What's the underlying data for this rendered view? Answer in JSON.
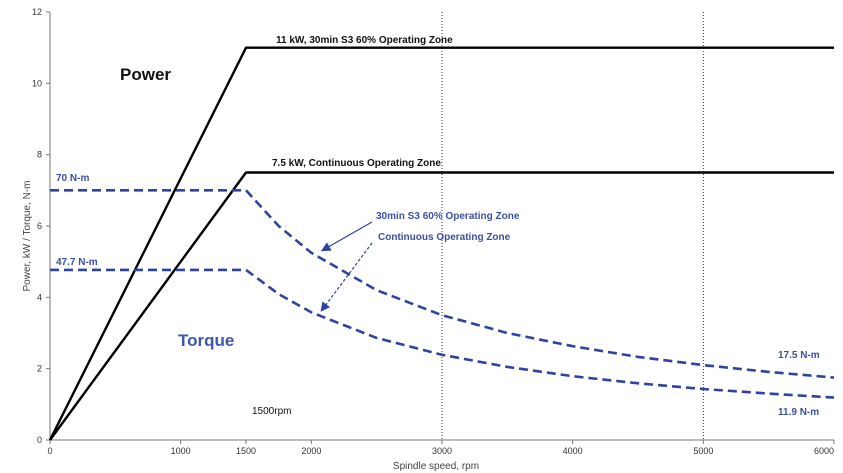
{
  "chart_data": {
    "type": "line",
    "title": "",
    "xlabel": "Spindle speed, rpm",
    "ylabel": "Power, kW / Torque, N-m",
    "xlim": [
      0,
      6000
    ],
    "ylim": [
      0,
      12
    ],
    "x_ticks": [
      0,
      1000,
      1500,
      2000,
      3000,
      4000,
      5000,
      6000
    ],
    "x_tick_labels": [
      "0",
      "1000",
      "1500",
      "2000",
      "3000",
      "4000",
      "5000",
      "6000"
    ],
    "y_ticks": [
      0,
      2,
      4,
      6,
      8,
      10,
      12
    ],
    "y_tick_labels": [
      "0",
      "2",
      "4",
      "6",
      "8",
      "10",
      "12"
    ],
    "vertical_gridlines": [
      3000,
      5000
    ],
    "series": [
      {
        "name": "11 kW, 30min S3 60% Operating Zone",
        "group": "power",
        "style": "solid",
        "color": "#000000",
        "points": [
          [
            0,
            0
          ],
          [
            1500,
            11
          ],
          [
            6000,
            11
          ]
        ]
      },
      {
        "name": "7.5 kW, Continuous Operating Zone",
        "group": "power",
        "style": "solid",
        "color": "#000000",
        "points": [
          [
            0,
            0
          ],
          [
            1500,
            7.5
          ],
          [
            6000,
            7.5
          ]
        ]
      },
      {
        "name": "30min S3 60% Operating Zone",
        "group": "torque",
        "style": "dashed",
        "color": "#2f44a0",
        "points": [
          [
            0,
            7.0
          ],
          [
            1500,
            7.0
          ],
          [
            1750,
            6.0
          ],
          [
            2000,
            5.25
          ],
          [
            2500,
            4.2
          ],
          [
            3000,
            3.5
          ],
          [
            3500,
            3.0
          ],
          [
            4000,
            2.63
          ],
          [
            4500,
            2.33
          ],
          [
            5000,
            2.1
          ],
          [
            5500,
            1.91
          ],
          [
            6000,
            1.75
          ]
        ]
      },
      {
        "name": "Continuous Operating Zone",
        "group": "torque",
        "style": "dashed",
        "color": "#2f44a0",
        "points": [
          [
            0,
            4.77
          ],
          [
            1500,
            4.77
          ],
          [
            1750,
            4.09
          ],
          [
            2000,
            3.58
          ],
          [
            2500,
            2.86
          ],
          [
            3000,
            2.39
          ],
          [
            3500,
            2.05
          ],
          [
            4000,
            1.79
          ],
          [
            4500,
            1.59
          ],
          [
            5000,
            1.43
          ],
          [
            5500,
            1.3
          ],
          [
            6000,
            1.19
          ]
        ]
      }
    ],
    "annotations": {
      "power_label": "Power",
      "torque_label": "Torque",
      "power_s3": "11 kW, 30min S3 60% Operating Zone",
      "power_cont": "7.5 kW, Continuous Operating Zone",
      "torque_s3": "30min S3 60% Operating Zone",
      "torque_cont": "Continuous Operating Zone",
      "t70": "70 N-m",
      "t477": "47.7 N-m",
      "t175": "17.5 N-m",
      "t119": "11.9 N-m",
      "base_speed": "1500rpm"
    }
  }
}
